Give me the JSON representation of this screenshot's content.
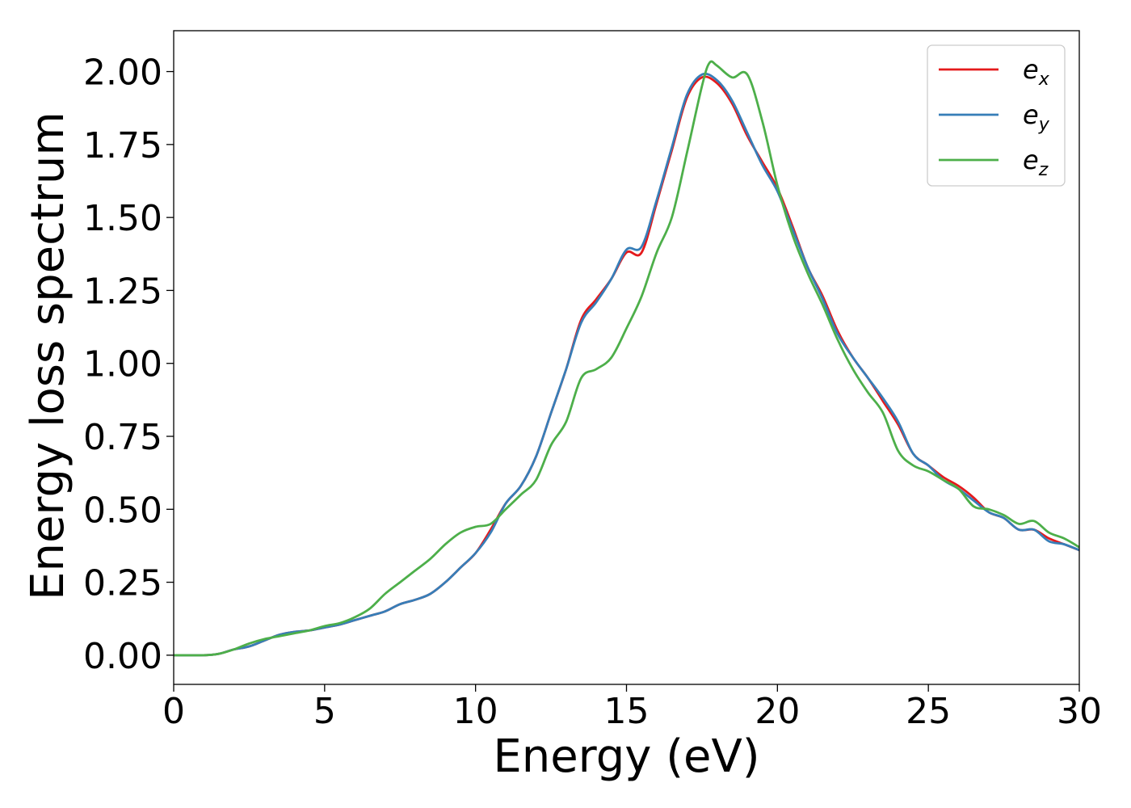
{
  "chart_data": {
    "type": "line",
    "title": "",
    "xlabel": "Energy (eV)",
    "ylabel": "Energy loss spectrum",
    "xlim": [
      0,
      30
    ],
    "ylim": [
      -0.1,
      2.14
    ],
    "x_ticks": [
      0,
      5,
      10,
      15,
      20,
      25,
      30
    ],
    "x_tick_labels": [
      "0",
      "5",
      "10",
      "15",
      "20",
      "25",
      "30"
    ],
    "y_ticks": [
      0,
      0.25,
      0.5,
      0.75,
      1.0,
      1.25,
      1.5,
      1.75,
      2.0
    ],
    "y_tick_labels": [
      "0.00",
      "0.25",
      "0.50",
      "0.75",
      "1.00",
      "1.25",
      "1.50",
      "1.75",
      "2.00"
    ],
    "grid": false,
    "legend_position": "top-right",
    "series": [
      {
        "name": "e_x",
        "label_base": "e",
        "label_sub": "x",
        "color": "#e41a1c",
        "x": [
          0,
          1,
          1.5,
          2,
          2.5,
          3,
          3.5,
          4,
          4.5,
          5,
          5.5,
          6,
          6.5,
          7,
          7.5,
          8,
          8.5,
          9,
          9.5,
          10,
          10.5,
          11,
          11.5,
          12,
          12.5,
          13,
          13.5,
          14,
          14.5,
          15,
          15.5,
          16,
          16.5,
          17,
          17.5,
          18,
          18.5,
          19,
          19.5,
          20,
          20.5,
          21,
          21.5,
          22,
          22.5,
          23,
          23.5,
          24,
          24.5,
          25,
          25.5,
          26,
          26.5,
          27,
          27.5,
          28,
          28.5,
          29,
          29.5,
          30
        ],
        "y": [
          0,
          0,
          0.005,
          0.02,
          0.03,
          0.05,
          0.07,
          0.08,
          0.085,
          0.095,
          0.105,
          0.12,
          0.135,
          0.15,
          0.175,
          0.19,
          0.21,
          0.25,
          0.3,
          0.35,
          0.43,
          0.52,
          0.58,
          0.68,
          0.83,
          0.98,
          1.15,
          1.22,
          1.29,
          1.38,
          1.38,
          1.55,
          1.73,
          1.91,
          1.98,
          1.96,
          1.89,
          1.78,
          1.69,
          1.6,
          1.47,
          1.33,
          1.23,
          1.11,
          1.02,
          0.95,
          0.87,
          0.79,
          0.69,
          0.65,
          0.61,
          0.58,
          0.54,
          0.49,
          0.47,
          0.43,
          0.43,
          0.4,
          0.38,
          0.36
        ]
      },
      {
        "name": "e_y",
        "label_base": "e",
        "label_sub": "y",
        "color": "#377eb8",
        "x": [
          0,
          1,
          1.5,
          2,
          2.5,
          3,
          3.5,
          4,
          4.5,
          5,
          5.5,
          6,
          6.5,
          7,
          7.5,
          8,
          8.5,
          9,
          9.5,
          10,
          10.5,
          11,
          11.5,
          12,
          12.5,
          13,
          13.5,
          14,
          14.5,
          15,
          15.5,
          16,
          16.5,
          17,
          17.5,
          18,
          18.5,
          19,
          19.5,
          20,
          20.5,
          21,
          21.5,
          22,
          22.5,
          23,
          23.5,
          24,
          24.5,
          25,
          25.5,
          26,
          26.5,
          27,
          27.5,
          28,
          28.5,
          29,
          29.5,
          30
        ],
        "y": [
          0,
          0,
          0.005,
          0.02,
          0.03,
          0.05,
          0.07,
          0.08,
          0.085,
          0.095,
          0.105,
          0.12,
          0.135,
          0.15,
          0.175,
          0.19,
          0.21,
          0.25,
          0.3,
          0.35,
          0.42,
          0.52,
          0.58,
          0.68,
          0.83,
          0.98,
          1.14,
          1.21,
          1.29,
          1.39,
          1.4,
          1.56,
          1.74,
          1.92,
          1.99,
          1.97,
          1.9,
          1.79,
          1.68,
          1.59,
          1.46,
          1.33,
          1.22,
          1.1,
          1.02,
          0.95,
          0.88,
          0.8,
          0.69,
          0.65,
          0.6,
          0.57,
          0.53,
          0.49,
          0.47,
          0.43,
          0.43,
          0.39,
          0.38,
          0.36
        ]
      },
      {
        "name": "e_z",
        "label_base": "e",
        "label_sub": "z",
        "color": "#4daf4a",
        "x": [
          0,
          1,
          1.5,
          2,
          2.5,
          3,
          3.5,
          4,
          4.5,
          5,
          5.5,
          6,
          6.5,
          7,
          7.5,
          8,
          8.5,
          9,
          9.5,
          10,
          10.5,
          11,
          11.5,
          12,
          12.5,
          13,
          13.5,
          14,
          14.5,
          15,
          15.5,
          16,
          16.5,
          17,
          17.5,
          17.75,
          18,
          18.5,
          19,
          19.5,
          20,
          20.5,
          21,
          21.5,
          22,
          22.5,
          23,
          23.5,
          24,
          24.5,
          25,
          25.5,
          26,
          26.5,
          27,
          27.5,
          28,
          28.5,
          29,
          29.5,
          30
        ],
        "y": [
          0,
          0,
          0.005,
          0.02,
          0.04,
          0.055,
          0.065,
          0.075,
          0.085,
          0.1,
          0.11,
          0.13,
          0.16,
          0.21,
          0.25,
          0.29,
          0.33,
          0.38,
          0.42,
          0.44,
          0.45,
          0.5,
          0.55,
          0.6,
          0.72,
          0.8,
          0.95,
          0.98,
          1.02,
          1.12,
          1.23,
          1.38,
          1.5,
          1.72,
          1.95,
          2.03,
          2.02,
          1.98,
          1.99,
          1.83,
          1.61,
          1.44,
          1.31,
          1.2,
          1.08,
          0.98,
          0.9,
          0.83,
          0.7,
          0.65,
          0.63,
          0.6,
          0.57,
          0.51,
          0.5,
          0.48,
          0.45,
          0.46,
          0.42,
          0.4,
          0.37
        ]
      }
    ]
  }
}
